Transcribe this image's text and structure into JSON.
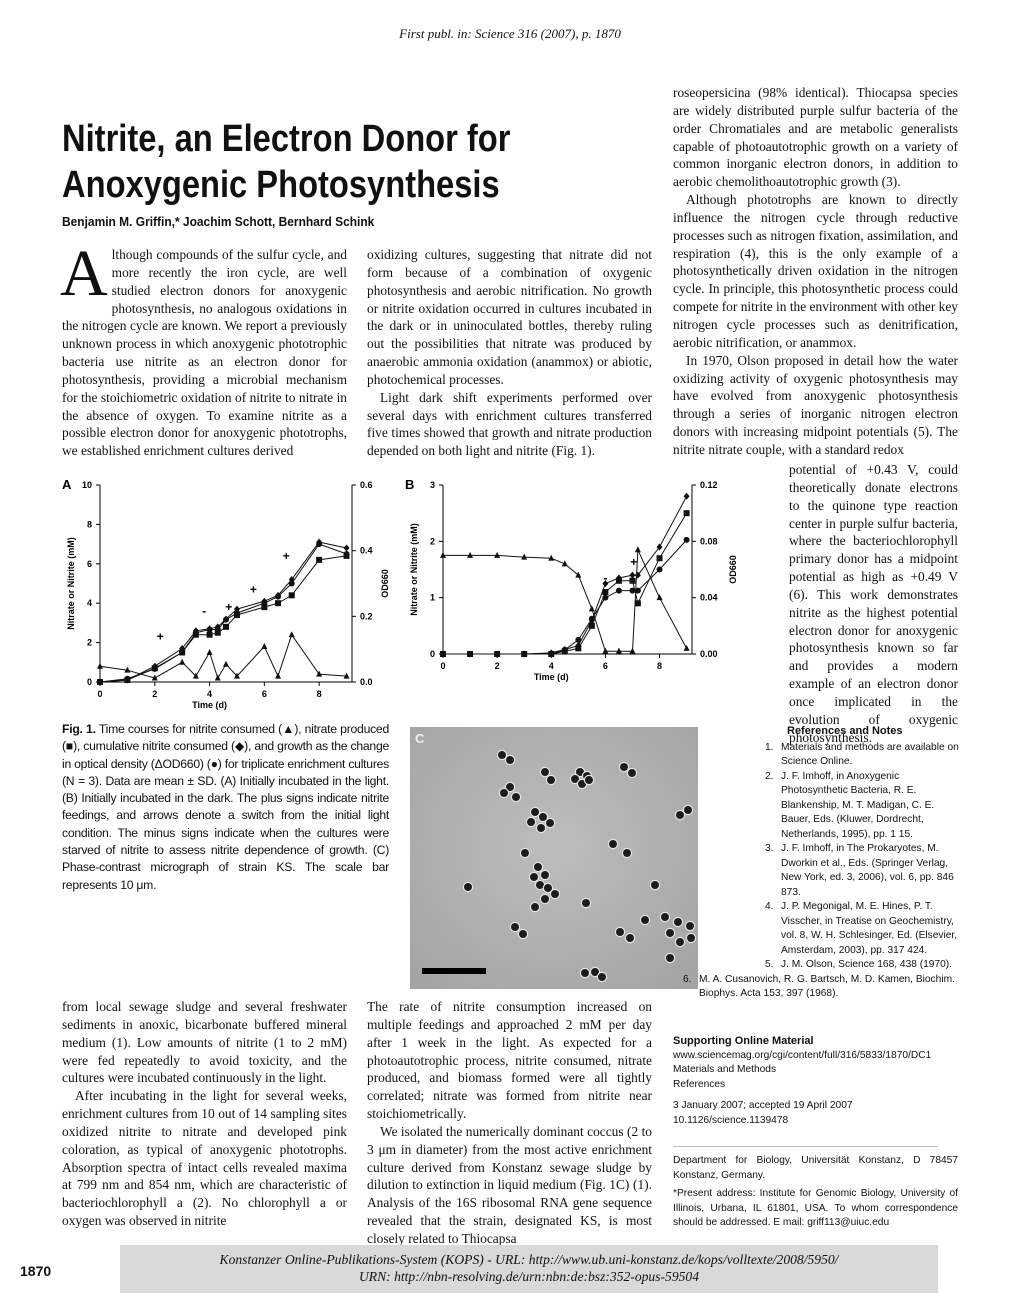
{
  "header": "First publ. in: Science 316 (2007), p. 1870",
  "title": [
    "Nitrite, an Electron Donor for",
    "Anoxygenic Photosynthesis"
  ],
  "authors": "Benjamin M. Griffin,* Joachim Schott, Bernhard Schink",
  "body": {
    "intro": {
      "drop_cap": "A",
      "text": "lthough compounds of the sulfur cycle, and more recently the iron cycle, are well studied electron donors for anoxygenic photosynthesis, no analogous oxidations in the nitrogen cycle are known. We report a previously unknown process in which anoxygenic phototrophic bacteria use nitrite as an electron donor for photosynthesis, providing a microbial mechanism for the stoichiometric oxidation of nitrite to nitrate in the absence of oxygen. To examine nitrite as a possible electron donor for anoxygenic phototrophs, we established enrichment cultures derived"
    },
    "col2_top": [
      "oxidizing cultures, suggesting that nitrate did not form because of a combination of oxygenic photosynthesis and aerobic nitrification. No growth or nitrite oxidation occurred in cultures incubated in the dark or in uninoculated bottles, thereby ruling out the possibilities that nitrate was produced by anaerobic ammonia oxidation (anammox) or abiotic, photochemical processes.",
      "Light dark shift experiments performed over several days with enrichment cultures transferred five times showed that growth and nitrate production depended on both light and nitrite (Fig. 1)."
    ],
    "col3_top": [
      "roseopersicina (98% identical). Thiocapsa species are widely distributed purple sulfur bacteria of the order Chromatiales and are metabolic generalists capable of photoautotrophic growth on a variety of common inorganic electron donors, in addition to aerobic chemolithoautotrophic growth (3).",
      "Although phototrophs are known to directly influence the nitrogen cycle through reductive processes such as nitrogen fixation, assimilation, and respiration (4), this is the only example of a photosynthetically driven oxidation in the nitrogen cycle. In principle, this photosynthetic process could compete for nitrite in the environment with other key nitrogen cycle processes such as denitrification, aerobic nitrification, or anammox.",
      "In 1970, Olson proposed in detail how the water oxidizing activity of oxygenic photosynthesis may have evolved from anoxygenic photosynthesis through a series of inorganic nitrogen electron donors with increasing midpoint potentials (5). The nitrite nitrate couple, with a standard redox"
    ],
    "col3_narrow": "potential of +0.43 V, could theoretically donate electrons to the quinone type reaction center in purple sulfur bacteria, where the bacteriochlorophyll primary donor has a midpoint potential as high as +0.49 V (6). This work demonstrates nitrite as the highest potential electron donor for anoxygenic photosynthesis known so far and provides a modern example of an electron donor once implicated in the evolution of oxygenic photosynthesis.",
    "col1_bottom": [
      "from local sewage sludge and several freshwater sediments in anoxic, bicarbonate buffered mineral medium (1). Low amounts of nitrite (1 to 2 mM) were fed repeatedly to avoid toxicity, and the cultures were incubated continuously in the light.",
      "After incubating in the light for several weeks, enrichment cultures from 10 out of 14 sampling sites oxidized nitrite to nitrate and developed pink coloration, as typical of anoxygenic phototrophs. Absorption spectra of intact cells revealed maxima at 799 nm and 854 nm, which are characteristic of bacteriochlorophyll a (2). No chlorophyll a or oxygen was observed in nitrite"
    ],
    "col2_bottom": [
      "The rate of nitrite consumption increased on multiple feedings and approached 2 mM per day after 1 week in the light. As expected for a photoautotrophic process, nitrite consumed, nitrate produced, and biomass formed were all tightly correlated; nitrate was formed from nitrite near stoichiometrically.",
      "We isolated the numerically dominant coccus (2 to 3 μm in diameter) from the most active enrichment culture derived from Konstanz sewage sludge by dilution to extinction in liquid medium (Fig. 1C) (1). Analysis of the 16S ribosomal RNA gene sequence revealed that the strain, designated KS, is most closely related to Thiocapsa"
    ]
  },
  "figure": {
    "label": "Fig. 1.",
    "caption": "Time courses for nitrite consumed (▲), nitrate produced (■), cumulative nitrite consumed (◆), and growth as the change in optical density (ΔOD660) (●) for triplicate enrichment cultures (N = 3). Data are mean ± SD. (A) Initially incubated in the light. (B) Initially incubated in the dark. The plus signs indicate nitrite feedings, and arrows denote a switch from the initial light condition. The minus signs indicate when the cultures were starved of nitrite to assess nitrite dependence of growth. (C) Phase-contrast micrograph of strain KS. The scale bar represents 10 μm.",
    "panel_c": "C"
  },
  "chart_data": [
    {
      "type": "line",
      "title": "A",
      "xlabel": "Time (d)",
      "ylabel": "Nitrate or Nitrite (mM)",
      "y2label": "OD660",
      "x": [
        0,
        1,
        2,
        3,
        3.5,
        4,
        4.3,
        4.6,
        5,
        6,
        6.5,
        7,
        8,
        9
      ],
      "xlim": [
        0,
        9.2
      ],
      "xticks": [
        0,
        2,
        4,
        6,
        8
      ],
      "ylim": [
        0,
        10
      ],
      "yticks": [
        0,
        2,
        4,
        6,
        8,
        10
      ],
      "y2lim": [
        0,
        0.6
      ],
      "y2ticks": [
        {
          "value": 0,
          "label": "0.0"
        },
        0.2,
        0.4,
        0.6
      ],
      "series": [
        {
          "marker": "triangle",
          "color": "#111111",
          "values": [
            0.8,
            0.6,
            0.2,
            1.0,
            0.3,
            1.5,
            0.2,
            0.9,
            0.3,
            1.8,
            0.3,
            2.4,
            0.4,
            0.3
          ]
        },
        {
          "marker": "square",
          "color": "#111111",
          "values": [
            0,
            0.1,
            0.7,
            1.5,
            2.4,
            2.4,
            2.5,
            2.8,
            3.4,
            3.8,
            4.0,
            4.4,
            6.2,
            6.4
          ]
        },
        {
          "marker": "diamond",
          "color": "#111111",
          "values": [
            0,
            0.1,
            0.8,
            1.7,
            2.6,
            2.7,
            2.8,
            3.2,
            3.7,
            4.1,
            4.4,
            5.2,
            7.1,
            6.8
          ]
        },
        {
          "marker": "circle",
          "color": "#111111",
          "axis": "y2",
          "values": [
            0,
            0.01,
            0.04,
            0.09,
            0.15,
            0.16,
            0.16,
            0.19,
            0.21,
            0.24,
            0.26,
            0.3,
            0.42,
            0.39
          ]
        }
      ],
      "annotations": [
        {
          "text": "+",
          "x": 2.2,
          "y": 2.3
        },
        {
          "text": "-",
          "x": 3.8,
          "y": 3.6
        },
        {
          "text": "+",
          "x": 4.7,
          "y": 3.8
        },
        {
          "text": "+",
          "x": 5.6,
          "y": 4.7
        },
        {
          "text": "+",
          "x": 6.8,
          "y": 6.4
        }
      ]
    },
    {
      "type": "line",
      "title": "B",
      "xlabel": "Time (d)",
      "ylabel": "Nitrate or Nitrite (mM)",
      "y2label": "OD660",
      "x": [
        0,
        1,
        2,
        3,
        4,
        4.5,
        5,
        5.5,
        6,
        6.5,
        7,
        7.2,
        8,
        9
      ],
      "xlim": [
        0,
        9.2
      ],
      "xticks": [
        0,
        2,
        4,
        6,
        8
      ],
      "ylim": [
        0,
        3
      ],
      "yticks": [
        0,
        1,
        2,
        3
      ],
      "y2lim": [
        0,
        0.12
      ],
      "y2ticks": [
        {
          "value": 0,
          "label": "0.00"
        },
        0.04,
        0.08,
        0.12
      ],
      "series": [
        {
          "marker": "triangle",
          "color": "#111111",
          "values": [
            1.75,
            1.75,
            1.75,
            1.72,
            1.7,
            1.6,
            1.4,
            0.8,
            0.05,
            0.05,
            0.05,
            1.85,
            1.0,
            0.1
          ]
        },
        {
          "marker": "square",
          "color": "#111111",
          "values": [
            0,
            0,
            0,
            0,
            0,
            0.05,
            0.1,
            0.5,
            1.1,
            1.3,
            1.3,
            0.9,
            1.7,
            2.5
          ]
        },
        {
          "marker": "diamond",
          "color": "#111111",
          "values": [
            0,
            0,
            0,
            0,
            0.02,
            0.08,
            0.15,
            0.6,
            1.25,
            1.35,
            1.4,
            1.4,
            1.9,
            2.8
          ]
        },
        {
          "marker": "circle",
          "color": "#111111",
          "axis": "y2",
          "values": [
            0,
            0,
            0,
            0,
            0,
            0.003,
            0.01,
            0.025,
            0.04,
            0.045,
            0.045,
            0.045,
            0.06,
            0.081
          ]
        }
      ],
      "annotations": [
        {
          "text": "+",
          "x": 7.05,
          "y": 1.63
        },
        {
          "text": "-",
          "x": 6.0,
          "y": 1.35
        }
      ]
    }
  ],
  "references": {
    "heading": "References and Notes",
    "items": [
      {
        "number": "1.",
        "text": "Materials and methods are available on Science Online."
      },
      {
        "number": "2.",
        "text": "J. F. Imhoff, in Anoxygenic Photosynthetic Bacteria, R. E. Blankenship, M. T. Madigan, C. E. Bauer, Eds. (Kluwer, Dordrecht, Netherlands, 1995), pp. 1 15."
      },
      {
        "number": "3.",
        "text": "J. F. Imhoff, in The Prokaryotes, M. Dworkin et al., Eds. (Springer Verlag, New York, ed. 3, 2006), vol. 6, pp. 846 873."
      },
      {
        "number": "4.",
        "text": "J. P. Megonigal, M. E. Hines, P. T. Visscher, in Treatise on Geochemistry, vol. 8, W. H. Schlesinger, Ed. (Elsevier, Amsterdam, 2003), pp. 317 424."
      },
      {
        "number": "5.",
        "text": "J. M. Olson, Science 168, 438 (1970)."
      },
      {
        "number": "6.",
        "text": "M. A. Cusanovich, R. G. Bartsch, M. D. Kamen, Biochim. Biophys. Acta 153, 397 (1968)."
      }
    ]
  },
  "supporting": {
    "heading": "Supporting Online Material",
    "url": "www.sciencemag.org/cgi/content/full/316/5833/1870/DC1",
    "items": [
      "Materials and Methods",
      "References"
    ]
  },
  "dates": "3 January 2007; accepted 19 April 2007",
  "doi": "10.1126/science.1139478",
  "affiliation": "Department for Biology, Universität Konstanz, D 78457 Konstanz, Germany.",
  "present_address": "*Present address: Institute for Genomic Biology, University of Illinois, Urbana, IL 61801, USA. To whom correspondence should be addressed. E mail: griff113@uiuc.edu",
  "footer": {
    "page_number": "1870",
    "lines": [
      "Konstanzer Online-Publikations-System (KOPS) - URL: http://www.ub.uni-konstanz.de/kops/volltexte/2008/5950/",
      "URN: http://nbn-resolving.de/urn:nbn:de:bsz:352-opus-59504"
    ]
  }
}
